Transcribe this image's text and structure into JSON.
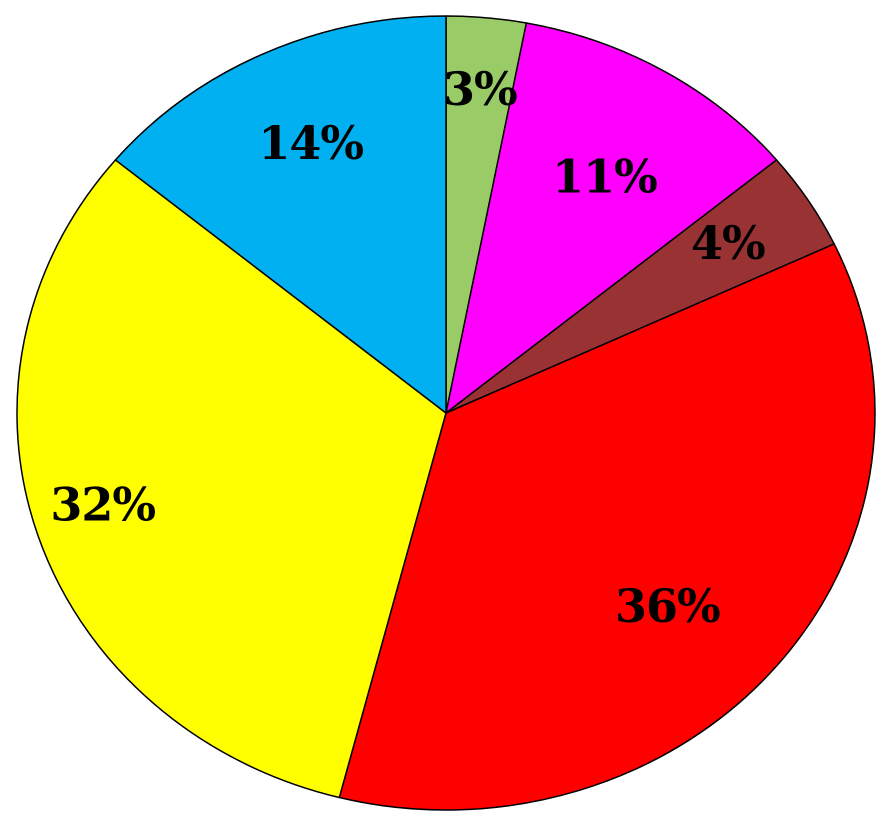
{
  "chart_data": {
    "type": "pie",
    "start_angle_deg": 0,
    "direction": "clockwise",
    "slices": [
      {
        "label": "3%",
        "value": 3,
        "color": "#99cc66"
      },
      {
        "label": "11%",
        "value": 11,
        "color": "#ff00ff"
      },
      {
        "label": "4%",
        "value": 4,
        "color": "#993333"
      },
      {
        "label": "36%",
        "value": 36,
        "color": "#ff0000"
      },
      {
        "label": "32%",
        "value": 32,
        "color": "#ffff00"
      },
      {
        "label": "14%",
        "value": 14,
        "color": "#00b0f0"
      }
    ]
  }
}
